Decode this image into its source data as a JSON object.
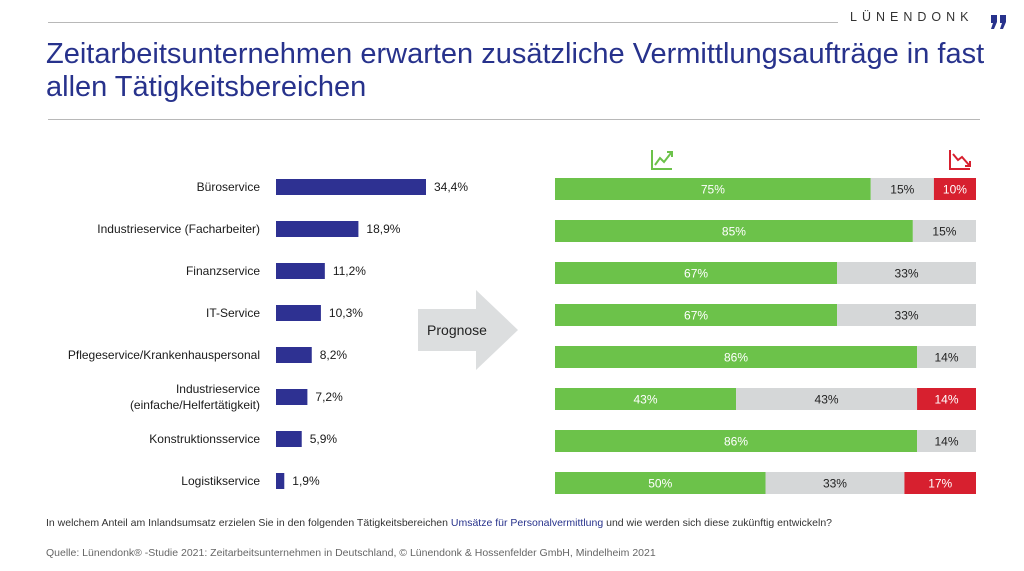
{
  "header": {
    "brand": "LÜNENDONK",
    "title": "Zeitarbeitsunternehmen erwarten zusätzliche Vermittlungsaufträge in fast allen Tätigkeitsbereichen"
  },
  "colors": {
    "bar_left": "#2e3192",
    "increase": "#6cc24a",
    "same": "#d5d7d8",
    "decrease": "#d7202f",
    "title": "#27328c"
  },
  "icons": {
    "increase": "trend-up-icon",
    "decrease": "trend-down-icon",
    "brand_mark": "quote-mark-icon"
  },
  "arrow_label": "Prognose",
  "question": {
    "before": "In welchem Anteil am Inlandsumsatz erzielen Sie in den folgenden Tätigkeitsbereichen ",
    "highlight": "Umsätze für Personalvermittlung",
    "after": " und wie werden sich diese zukünftig entwickeln?"
  },
  "source": "Quelle: Lünendonk® -Studie 2021: Zeitarbeitsunternehmen in Deutschland, © Lünendonk & Hossenfelder GmbH, Mindelheim 2021",
  "chart_data": [
    {
      "type": "bar",
      "orientation": "horizontal",
      "categories": [
        "Büroservice",
        "Industrieservice (Facharbeiter)",
        "Finanzservice",
        "IT-Service",
        "Pflegeservice/Krankenhauspersonal",
        "Industrieservice (einfache/Helfertätigkeit)",
        "Konstruktionsservice",
        "Logistikservice"
      ],
      "category_lines": [
        [
          "Büroservice"
        ],
        [
          "Industrieservice (Facharbeiter)"
        ],
        [
          "Finanzservice"
        ],
        [
          "IT-Service"
        ],
        [
          "Pflegeservice/Krankenhauspersonal"
        ],
        [
          "Industrieservice",
          "(einfache/Helfertätigkeit)"
        ],
        [
          "Konstruktionsservice"
        ],
        [
          "Logistikservice"
        ]
      ],
      "values": [
        34.4,
        18.9,
        11.2,
        10.3,
        8.2,
        7.2,
        5.9,
        1.9
      ],
      "value_labels": [
        "34,4%",
        "18,9%",
        "11,2%",
        "10,3%",
        "8,2%",
        "7,2%",
        "5,9%",
        "1,9%"
      ],
      "xlim": [
        0,
        34.4
      ],
      "grid": false
    },
    {
      "type": "bar",
      "orientation": "horizontal",
      "stacked": true,
      "percent_scale": 100,
      "categories": [
        "Büroservice",
        "Industrieservice (Facharbeiter)",
        "Finanzservice",
        "IT-Service",
        "Pflegeservice/Krankenhauspersonal",
        "Industrieservice (einfache/Helfertätigkeit)",
        "Konstruktionsservice",
        "Logistikservice"
      ],
      "series": [
        {
          "key": "increase",
          "values": [
            75,
            85,
            67,
            67,
            86,
            43,
            86,
            50
          ]
        },
        {
          "key": "same",
          "values": [
            15,
            15,
            33,
            33,
            14,
            43,
            14,
            33
          ]
        },
        {
          "key": "decrease",
          "values": [
            10,
            0,
            0,
            0,
            0,
            14,
            0,
            17
          ]
        }
      ],
      "grid": false
    }
  ]
}
